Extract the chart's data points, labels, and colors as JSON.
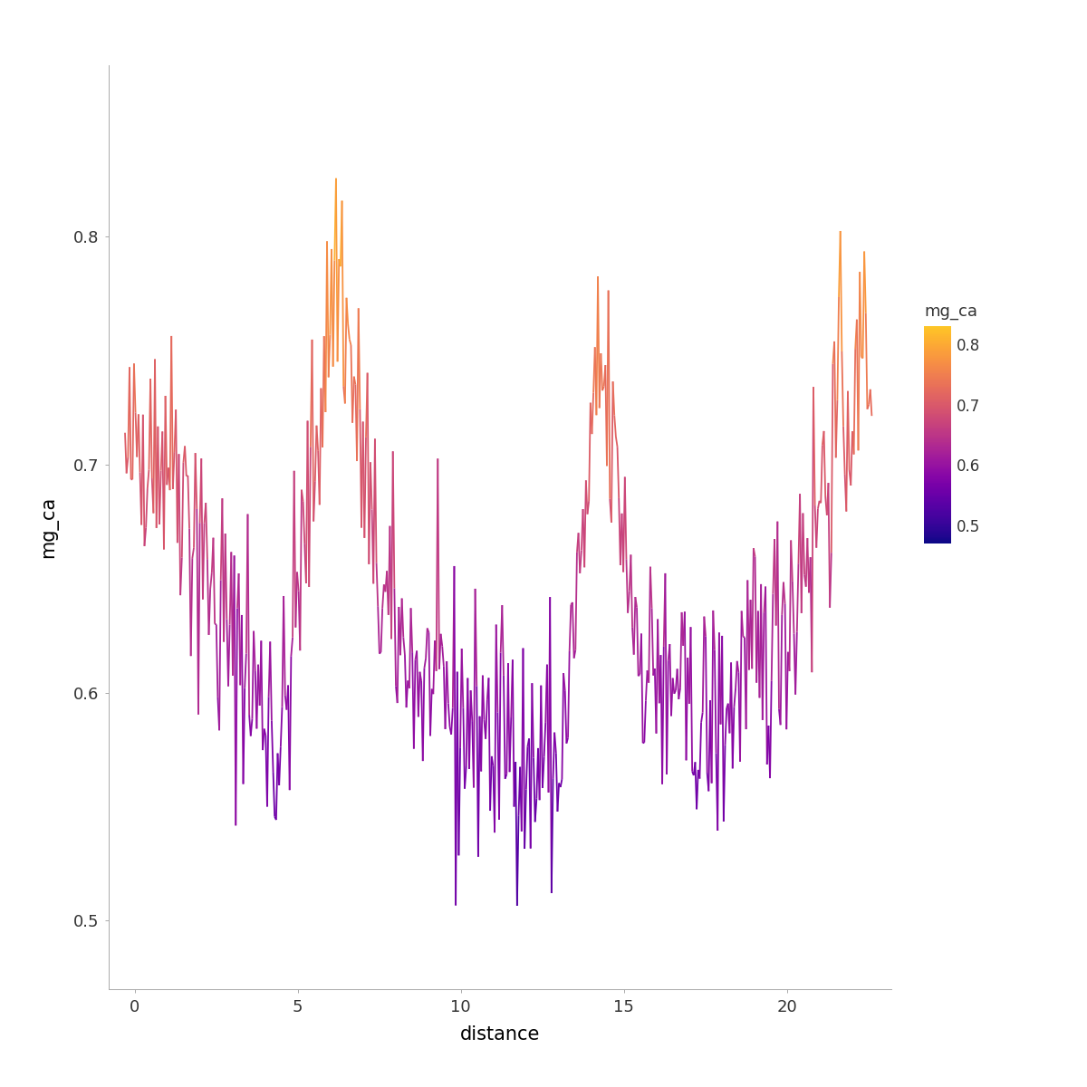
{
  "title": "",
  "xlabel": "distance",
  "ylabel": "mg_ca",
  "legend_title": "mg_ca",
  "xlim": [
    -0.8,
    23.2
  ],
  "ylim": [
    0.47,
    0.875
  ],
  "yticks": [
    0.5,
    0.6,
    0.7,
    0.8
  ],
  "xticks": [
    0,
    5,
    10,
    15,
    20
  ],
  "vmin": 0.47,
  "vmax": 0.83,
  "legend_ticks": [
    0.5,
    0.6,
    0.7,
    0.8
  ],
  "background_color": "#ffffff",
  "linewidth": 1.3,
  "seed": 42,
  "n_points": 500
}
